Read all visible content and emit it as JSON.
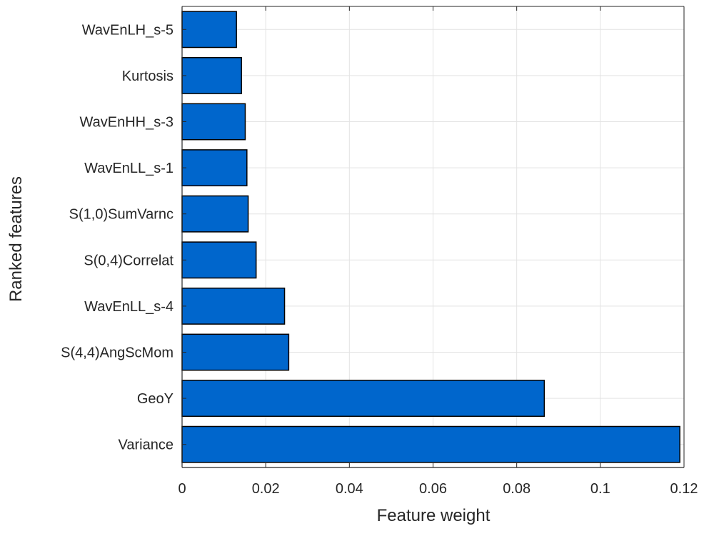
{
  "chart_data": {
    "type": "bar",
    "orientation": "horizontal",
    "title": "",
    "xlabel": "Feature weight",
    "ylabel": "Ranked features",
    "categories": [
      "WavEnLH_s-5",
      "Kurtosis",
      "WavEnHH_s-3",
      "WavEnLL_s-1",
      "S(1,0)SumVarnc",
      "S(0,4)Correlat",
      "WavEnLL_s-4",
      "S(4,4)AngScMom",
      "GeoY",
      "Variance"
    ],
    "values": [
      0.013,
      0.0142,
      0.0151,
      0.0155,
      0.0158,
      0.0177,
      0.0245,
      0.0255,
      0.0866,
      0.119
    ],
    "xlim": [
      0,
      0.12
    ],
    "xticks": [
      0,
      0.02,
      0.04,
      0.06,
      0.08,
      0.1,
      0.12
    ],
    "xtick_labels": [
      "0",
      "0.02",
      "0.04",
      "0.06",
      "0.08",
      "0.1",
      "0.12"
    ],
    "grid": true,
    "bar_color": "#0066cc",
    "bar_edge_color": "#000000"
  }
}
